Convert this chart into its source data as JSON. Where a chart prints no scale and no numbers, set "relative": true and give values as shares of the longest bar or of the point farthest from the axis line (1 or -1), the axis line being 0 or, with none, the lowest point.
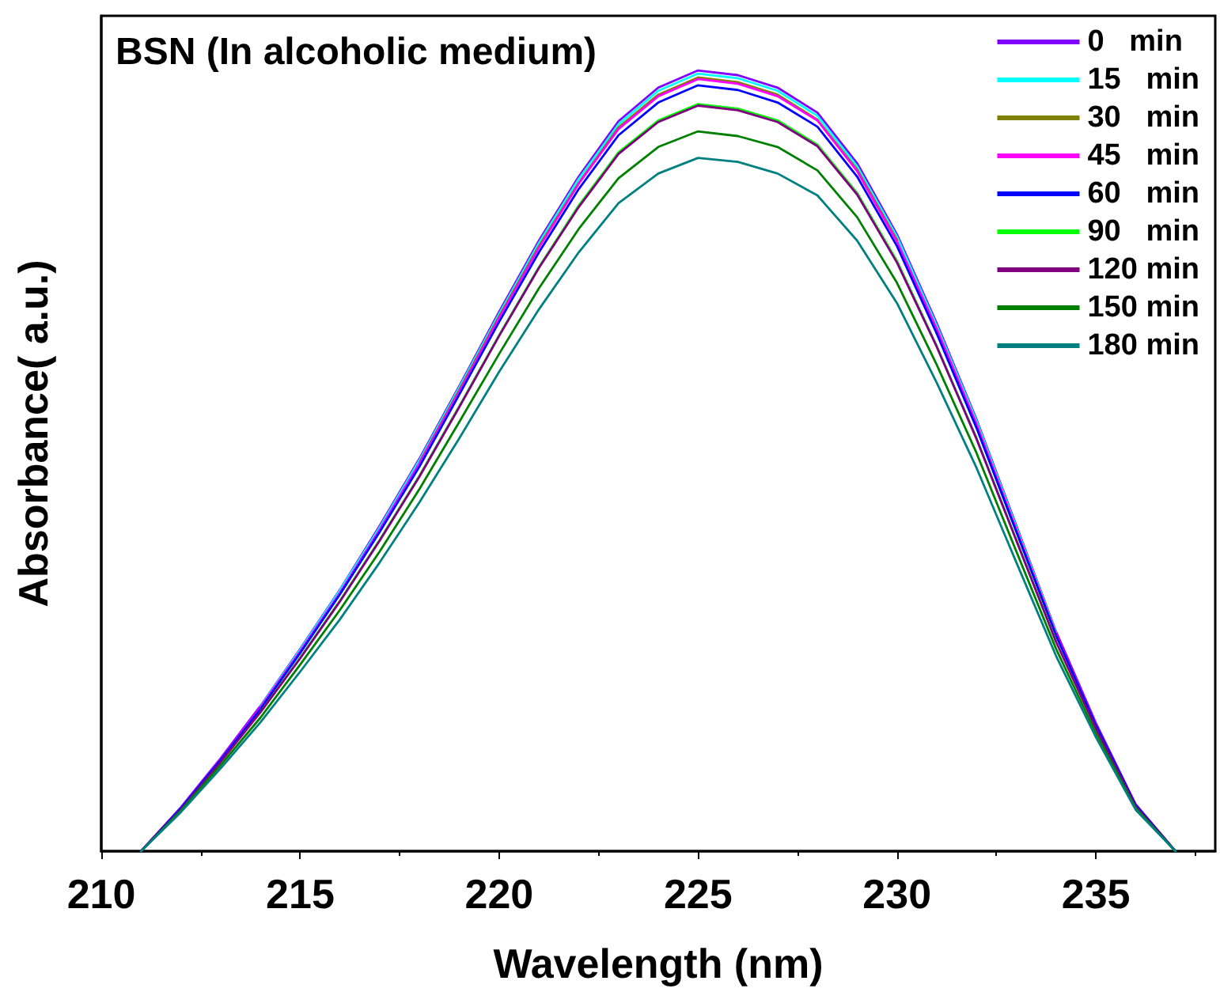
{
  "chart_data": {
    "type": "line",
    "title": "BSN (In alcoholic medium)",
    "xlabel": "Wavelength (nm)",
    "ylabel": "Absorbance( a.u.)",
    "relative": true,
    "tick_labels": "x",
    "legend": "top right",
    "marker": "none",
    "line_style": "solid",
    "grid": false,
    "xlim": [
      210,
      238
    ],
    "xticks": [
      210,
      215,
      220,
      225,
      230,
      235
    ],
    "x": [
      211,
      212,
      213,
      214,
      215,
      216,
      217,
      218,
      219,
      220,
      221,
      222,
      223,
      224,
      225,
      226,
      227,
      228,
      229,
      230,
      231,
      232,
      233,
      234,
      235,
      236,
      237
    ],
    "series": [
      {
        "name": "0   min",
        "color": "#8000ff",
        "values": [
          0,
          0.056,
          0.119,
          0.186,
          0.259,
          0.335,
          0.417,
          0.503,
          0.596,
          0.691,
          0.782,
          0.864,
          0.935,
          0.978,
          1,
          0.994,
          0.978,
          0.946,
          0.881,
          0.79,
          0.676,
          0.553,
          0.417,
          0.281,
          0.164,
          0.06,
          0
        ]
      },
      {
        "name": "15   min",
        "color": "#00ffff",
        "values": [
          null,
          null,
          null,
          0.185,
          0.258,
          0.334,
          0.415,
          0.501,
          0.594,
          0.688,
          0.779,
          0.861,
          0.931,
          0.974,
          0.996,
          0.99,
          0.974,
          0.942,
          0.877,
          0.787,
          0.673,
          0.551,
          0.415,
          0.28,
          null,
          null,
          null
        ]
      },
      {
        "name": "30   min",
        "color": "#808000",
        "values": [
          null,
          null,
          null,
          null,
          null,
          null,
          null,
          0.498,
          0.591,
          0.685,
          0.775,
          0.856,
          0.927,
          0.969,
          0.991,
          0.985,
          0.969,
          0.937,
          0.873,
          0.783,
          null,
          null,
          null,
          null,
          null,
          null,
          null
        ]
      },
      {
        "name": "45   min",
        "color": "#ff00ff",
        "values": [
          0,
          0.055,
          0.118,
          0.184,
          0.256,
          0.331,
          0.412,
          0.497,
          0.589,
          0.683,
          0.773,
          0.855,
          0.925,
          0.967,
          0.989,
          0.983,
          0.967,
          0.936,
          0.871,
          0.781,
          0.669,
          0.547,
          0.412,
          0.278,
          0.162,
          null,
          null
        ]
      },
      {
        "name": "60   min",
        "color": "#0000ff",
        "values": [
          0,
          0.055,
          0.117,
          0.182,
          0.254,
          0.329,
          0.409,
          0.493,
          0.585,
          0.678,
          0.767,
          0.848,
          0.917,
          0.959,
          0.981,
          0.975,
          0.959,
          0.928,
          0.864,
          0.775,
          0.663,
          0.542,
          0.409,
          0.276,
          0.161,
          0.059,
          0
        ]
      },
      {
        "name": "90   min",
        "color": "#00ff00",
        "values": [
          null,
          null,
          null,
          0.178,
          0.248,
          0.321,
          0.399,
          0.481,
          0.57,
          0.661,
          0.748,
          0.827,
          0.895,
          0.936,
          0.957,
          0.951,
          0.936,
          0.905,
          0.843,
          0.756,
          0.647,
          0.529,
          0.399,
          0.269,
          null,
          null,
          null
        ]
      },
      {
        "name": "120 min",
        "color": "#800080",
        "values": [
          0,
          0.053,
          0.114,
          0.178,
          0.247,
          0.32,
          0.398,
          0.48,
          0.569,
          0.66,
          0.747,
          0.825,
          0.893,
          0.934,
          0.955,
          0.949,
          0.934,
          0.903,
          0.841,
          0.754,
          0.646,
          0.528,
          0.398,
          0.268,
          0.157,
          0.057,
          0
        ]
      },
      {
        "name": "150 min",
        "color": "#008000",
        "values": [
          0,
          0.052,
          0.11,
          0.171,
          0.239,
          0.309,
          0.384,
          0.464,
          0.55,
          0.637,
          0.721,
          0.797,
          0.862,
          0.902,
          0.922,
          0.916,
          0.902,
          0.872,
          0.812,
          0.728,
          0.623,
          0.51,
          0.384,
          0.259,
          0.151,
          0.055,
          0
        ]
      },
      {
        "name": "180 min",
        "color": "#008080",
        "values": [
          0,
          0.05,
          0.106,
          0.165,
          0.23,
          0.297,
          0.37,
          0.447,
          0.529,
          0.614,
          0.694,
          0.767,
          0.83,
          0.868,
          0.888,
          0.883,
          0.868,
          0.84,
          0.782,
          0.702,
          0.6,
          0.491,
          0.37,
          0.25,
          0.146,
          0.053,
          0
        ]
      }
    ]
  }
}
